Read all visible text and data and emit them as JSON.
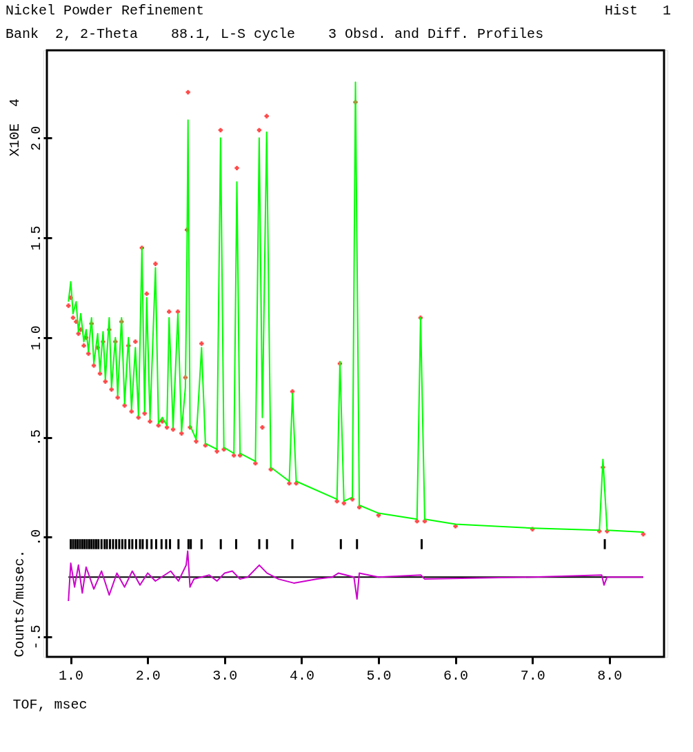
{
  "chart_data": {
    "type": "scatter",
    "title": "Nickel Powder Refinement",
    "subtitle": "Bank  2, 2-Theta    88.1, L-S cycle    3 Obsd. and Diff. Profiles",
    "xlabel": "TOF, msec",
    "ylabel": "Counts/musec.",
    "annotations": [
      "Hist   1",
      "X10E  4"
    ],
    "xlim": [
      0.69,
      8.71
    ],
    "ylim": [
      -0.6,
      2.44
    ],
    "xticks": [
      {
        "value": 1,
        "label": "1.0"
      },
      {
        "value": 2,
        "label": "2.0"
      },
      {
        "value": 3,
        "label": "3.0"
      },
      {
        "value": 4,
        "label": "4.0"
      },
      {
        "value": 5,
        "label": "5.0"
      },
      {
        "value": 6,
        "label": "6.0"
      },
      {
        "value": 7,
        "label": "7.0"
      },
      {
        "value": 8,
        "label": "8.0"
      }
    ],
    "yticks": [
      {
        "value": -0.5,
        "label": "-.5"
      },
      {
        "value": 0,
        "label": ".0"
      },
      {
        "value": 0.5,
        "label": ".5"
      },
      {
        "value": 1,
        "label": "1.0"
      },
      {
        "value": 1.5,
        "label": "1.5"
      },
      {
        "value": 2,
        "label": "2.0"
      }
    ],
    "grid": false,
    "ref_lines": [
      {
        "axis": "y",
        "value": -0.2,
        "color": "#000000"
      }
    ],
    "series": [
      {
        "marker": "cross",
        "color": "#ff0000",
        "x": [
          0.97,
          1.0,
          1.03,
          1.07,
          1.1,
          1.13,
          1.17,
          1.2,
          1.23,
          1.27,
          1.3,
          1.35,
          1.38,
          1.42,
          1.45,
          1.5,
          1.53,
          1.58,
          1.61,
          1.66,
          1.7,
          1.75,
          1.79,
          1.84,
          1.88,
          1.925,
          1.96,
          1.987,
          2.03,
          2.101,
          2.14,
          2.19,
          2.25,
          2.278,
          2.33,
          2.392,
          2.44,
          2.49,
          2.51,
          2.524,
          2.55,
          2.63,
          2.7,
          2.75,
          2.9,
          2.947,
          2.99,
          3.12,
          3.159,
          3.2,
          3.4,
          3.449,
          3.49,
          3.546,
          3.6,
          3.84,
          3.881,
          3.93,
          4.46,
          4.498,
          4.55,
          4.66,
          4.7,
          4.75,
          5.0,
          5.5,
          5.546,
          5.6,
          6.0,
          7.0,
          7.87,
          7.916,
          7.97,
          8.44
        ],
        "values": [
          1.16,
          1.2,
          1.1,
          1.08,
          1.02,
          1.04,
          0.96,
          1.0,
          0.92,
          1.07,
          0.86,
          0.95,
          0.82,
          0.98,
          0.78,
          1.04,
          0.74,
          0.98,
          0.7,
          1.08,
          0.66,
          0.96,
          0.63,
          0.98,
          0.6,
          1.45,
          0.62,
          1.22,
          0.58,
          1.37,
          0.56,
          0.58,
          0.55,
          1.13,
          0.54,
          1.13,
          0.52,
          0.8,
          1.54,
          2.23,
          0.55,
          0.48,
          0.97,
          0.46,
          0.43,
          2.04,
          0.44,
          0.41,
          1.85,
          0.41,
          0.37,
          2.04,
          0.55,
          2.11,
          0.34,
          0.27,
          0.73,
          0.27,
          0.18,
          0.87,
          0.17,
          0.19,
          2.18,
          0.15,
          0.11,
          0.08,
          1.1,
          0.08,
          0.055,
          0.04,
          0.03,
          0.35,
          0.03,
          0.015
        ]
      },
      {
        "type": "line",
        "color": "#00ff00",
        "x": [
          0.97,
          1.0,
          1.03,
          1.07,
          1.1,
          1.13,
          1.17,
          1.2,
          1.23,
          1.27,
          1.3,
          1.35,
          1.38,
          1.42,
          1.45,
          1.5,
          1.53,
          1.58,
          1.61,
          1.66,
          1.7,
          1.75,
          1.79,
          1.84,
          1.88,
          1.925,
          1.96,
          1.987,
          2.03,
          2.101,
          2.14,
          2.19,
          2.25,
          2.278,
          2.33,
          2.392,
          2.44,
          2.49,
          2.51,
          2.524,
          2.55,
          2.63,
          2.7,
          2.75,
          2.9,
          2.947,
          2.99,
          3.12,
          3.159,
          3.2,
          3.4,
          3.449,
          3.49,
          3.546,
          3.6,
          3.84,
          3.881,
          3.93,
          4.46,
          4.498,
          4.55,
          4.66,
          4.7,
          4.75,
          5.0,
          5.5,
          5.546,
          5.6,
          6.0,
          7.0,
          7.87,
          7.916,
          7.97,
          8.44
        ],
        "values": [
          1.18,
          1.28,
          1.12,
          1.18,
          1.03,
          1.12,
          0.98,
          1.04,
          0.93,
          1.1,
          0.87,
          1.02,
          0.83,
          1.03,
          0.79,
          1.1,
          0.75,
          1.0,
          0.71,
          1.1,
          0.67,
          1.0,
          0.64,
          0.95,
          0.61,
          1.45,
          0.63,
          1.2,
          0.59,
          1.35,
          0.57,
          0.6,
          0.56,
          1.1,
          0.55,
          1.12,
          0.53,
          0.75,
          1.4,
          2.09,
          0.56,
          0.49,
          0.95,
          0.47,
          0.44,
          2.0,
          0.45,
          0.42,
          1.78,
          0.42,
          0.38,
          2.0,
          0.6,
          2.03,
          0.35,
          0.28,
          0.72,
          0.28,
          0.19,
          0.88,
          0.18,
          0.2,
          2.28,
          0.16,
          0.12,
          0.09,
          1.1,
          0.09,
          0.065,
          0.045,
          0.035,
          0.39,
          0.035,
          0.025
        ]
      },
      {
        "type": "line",
        "color": "#cc00cc",
        "x": [
          0.97,
          1.0,
          1.05,
          1.1,
          1.15,
          1.2,
          1.3,
          1.4,
          1.5,
          1.6,
          1.7,
          1.8,
          1.9,
          2.0,
          2.1,
          2.3,
          2.4,
          2.5,
          2.52,
          2.55,
          2.6,
          2.8,
          2.9,
          3.0,
          3.1,
          3.2,
          3.3,
          3.45,
          3.5,
          3.55,
          3.7,
          3.9,
          4.2,
          4.4,
          4.48,
          4.68,
          4.72,
          4.75,
          5.0,
          5.55,
          5.6,
          7.0,
          7.9,
          7.93,
          7.97,
          8.44
        ],
        "values": [
          -0.32,
          -0.13,
          -0.25,
          -0.14,
          -0.28,
          -0.15,
          -0.26,
          -0.17,
          -0.29,
          -0.18,
          -0.25,
          -0.17,
          -0.24,
          -0.18,
          -0.22,
          -0.17,
          -0.22,
          -0.14,
          -0.07,
          -0.25,
          -0.21,
          -0.19,
          -0.22,
          -0.18,
          -0.17,
          -0.21,
          -0.2,
          -0.14,
          -0.16,
          -0.18,
          -0.21,
          -0.23,
          -0.21,
          -0.2,
          -0.18,
          -0.2,
          -0.31,
          -0.18,
          -0.2,
          -0.19,
          -0.21,
          -0.2,
          -0.19,
          -0.24,
          -0.2,
          -0.2
        ]
      },
      {
        "type": "bar",
        "color": "#000000",
        "base": [
          -0.06,
          -0.06,
          -0.06,
          -0.06,
          -0.06,
          -0.06,
          -0.06,
          -0.06,
          -0.06,
          -0.06,
          -0.06,
          -0.06,
          -0.06,
          -0.06,
          -0.06,
          -0.06,
          -0.06,
          -0.06,
          -0.06,
          -0.06,
          -0.06,
          -0.06,
          -0.06,
          -0.06,
          -0.06,
          -0.06,
          -0.06,
          -0.06,
          -0.06,
          -0.06,
          -0.06,
          -0.06,
          -0.06,
          -0.06,
          -0.06,
          -0.06,
          -0.06,
          -0.06,
          -0.06,
          -0.06,
          -0.06,
          -0.06,
          -0.06,
          -0.06,
          -0.06,
          -0.06
        ],
        "x": [
          1.0,
          1.03,
          1.06,
          1.09,
          1.12,
          1.15,
          1.18,
          1.21,
          1.24,
          1.27,
          1.3,
          1.33,
          1.36,
          1.4,
          1.44,
          1.47,
          1.51,
          1.55,
          1.59,
          1.63,
          1.67,
          1.71,
          1.76,
          1.8,
          1.85,
          1.9,
          1.935,
          1.99,
          2.05,
          2.11,
          2.18,
          2.24,
          2.29,
          2.4,
          2.53,
          2.56,
          2.7,
          2.95,
          3.15,
          3.45,
          3.55,
          3.88,
          4.51,
          4.72,
          5.56,
          7.94
        ],
        "values": [
          0.05,
          0.05,
          0.05,
          0.05,
          0.05,
          0.05,
          0.05,
          0.05,
          0.05,
          0.05,
          0.05,
          0.05,
          0.05,
          0.05,
          0.05,
          0.05,
          0.05,
          0.05,
          0.05,
          0.05,
          0.05,
          0.05,
          0.05,
          0.05,
          0.05,
          0.05,
          0.05,
          0.05,
          0.05,
          0.05,
          0.05,
          0.05,
          0.05,
          0.05,
          0.05,
          0.05,
          0.05,
          0.05,
          0.05,
          0.05,
          0.05,
          0.05,
          0.05,
          0.05,
          0.05,
          0.05
        ]
      }
    ]
  }
}
